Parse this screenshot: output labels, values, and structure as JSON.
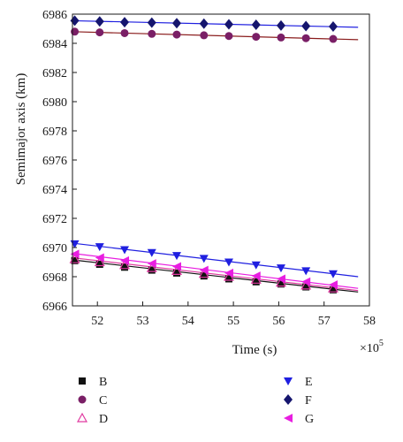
{
  "chart_data": {
    "type": "line",
    "xlabel": "Time (s)",
    "ylabel": "Semimajor axis (km)",
    "x_multiplier_label": "×10",
    "x_multiplier_exponent": "5",
    "xlim": [
      51.45,
      58
    ],
    "ylim": [
      6966,
      6986
    ],
    "xticks": [
      52,
      53,
      54,
      55,
      56,
      57,
      58
    ],
    "yticks": [
      6966,
      6968,
      6970,
      6972,
      6974,
      6976,
      6978,
      6980,
      6982,
      6984,
      6986
    ],
    "grid": false,
    "legend_position": "bottom",
    "series": [
      {
        "name": "B",
        "marker": "square",
        "color": "#111111",
        "line_color": "#111111",
        "x": [
          51.5,
          52.05,
          52.6,
          53.2,
          53.75,
          54.35,
          54.9,
          55.5,
          56.05,
          56.6,
          57.2
        ],
        "y": [
          6969.1,
          6968.85,
          6968.65,
          6968.45,
          6968.25,
          6968.05,
          6967.85,
          6967.65,
          6967.5,
          6967.3,
          6967.1
        ],
        "line_x": [
          51.45,
          57.75
        ],
        "line_y": [
          6969.15,
          6966.95
        ]
      },
      {
        "name": "C",
        "marker": "circle",
        "color": "#7a1f66",
        "line_color": "#8a1c1c",
        "x": [
          51.5,
          52.05,
          52.6,
          53.2,
          53.75,
          54.35,
          54.9,
          55.5,
          56.05,
          56.6,
          57.2
        ],
        "y": [
          6984.8,
          6984.75,
          6984.7,
          6984.65,
          6984.6,
          6984.55,
          6984.5,
          6984.45,
          6984.4,
          6984.35,
          6984.3
        ],
        "line_x": [
          51.45,
          57.75
        ],
        "line_y": [
          6984.8,
          6984.25
        ]
      },
      {
        "name": "D",
        "marker": "triangle-up-open",
        "color": "#e03aa0",
        "line_color": "#e03aa0",
        "x": [
          51.5,
          52.05,
          52.6,
          53.2,
          53.75,
          54.35,
          54.9,
          55.5,
          56.05,
          56.6,
          57.2
        ],
        "y": [
          6969.2,
          6969.0,
          6968.8,
          6968.6,
          6968.4,
          6968.2,
          6968.0,
          6967.8,
          6967.6,
          6967.4,
          6967.2
        ],
        "line_x": [
          51.45,
          57.75
        ],
        "line_y": [
          6969.3,
          6967.05
        ]
      },
      {
        "name": "E",
        "marker": "triangle-down",
        "color": "#1f1fe0",
        "line_color": "#1f1fe0",
        "x": [
          51.5,
          52.05,
          52.6,
          53.2,
          53.75,
          54.35,
          54.9,
          55.5,
          56.05,
          56.6,
          57.2
        ],
        "y": [
          6970.25,
          6970.05,
          6969.85,
          6969.65,
          6969.45,
          6969.25,
          6969.0,
          6968.8,
          6968.6,
          6968.4,
          6968.2
        ],
        "line_x": [
          51.45,
          57.75
        ],
        "line_y": [
          6970.3,
          6968.0
        ]
      },
      {
        "name": "F",
        "marker": "diamond",
        "color": "#15156e",
        "line_color": "#1f1fe0",
        "x": [
          51.5,
          52.05,
          52.6,
          53.2,
          53.75,
          54.35,
          54.9,
          55.5,
          56.05,
          56.6,
          57.2
        ],
        "y": [
          6985.55,
          6985.5,
          6985.45,
          6985.42,
          6985.38,
          6985.35,
          6985.3,
          6985.27,
          6985.22,
          6985.18,
          6985.15
        ],
        "line_x": [
          51.45,
          57.75
        ],
        "line_y": [
          6985.55,
          6985.1
        ]
      },
      {
        "name": "G",
        "marker": "triangle-left",
        "color": "#e81ee0",
        "line_color": "#e81ee0",
        "x": [
          51.5,
          52.05,
          52.6,
          53.2,
          53.75,
          54.35,
          54.9,
          55.5,
          56.05,
          56.6,
          57.2
        ],
        "y": [
          6969.55,
          6969.3,
          6969.1,
          6968.9,
          6968.7,
          6968.45,
          6968.25,
          6968.05,
          6967.85,
          6967.65,
          6967.45
        ],
        "line_x": [
          51.45,
          57.75
        ],
        "line_y": [
          6969.6,
          6967.2
        ]
      }
    ]
  }
}
